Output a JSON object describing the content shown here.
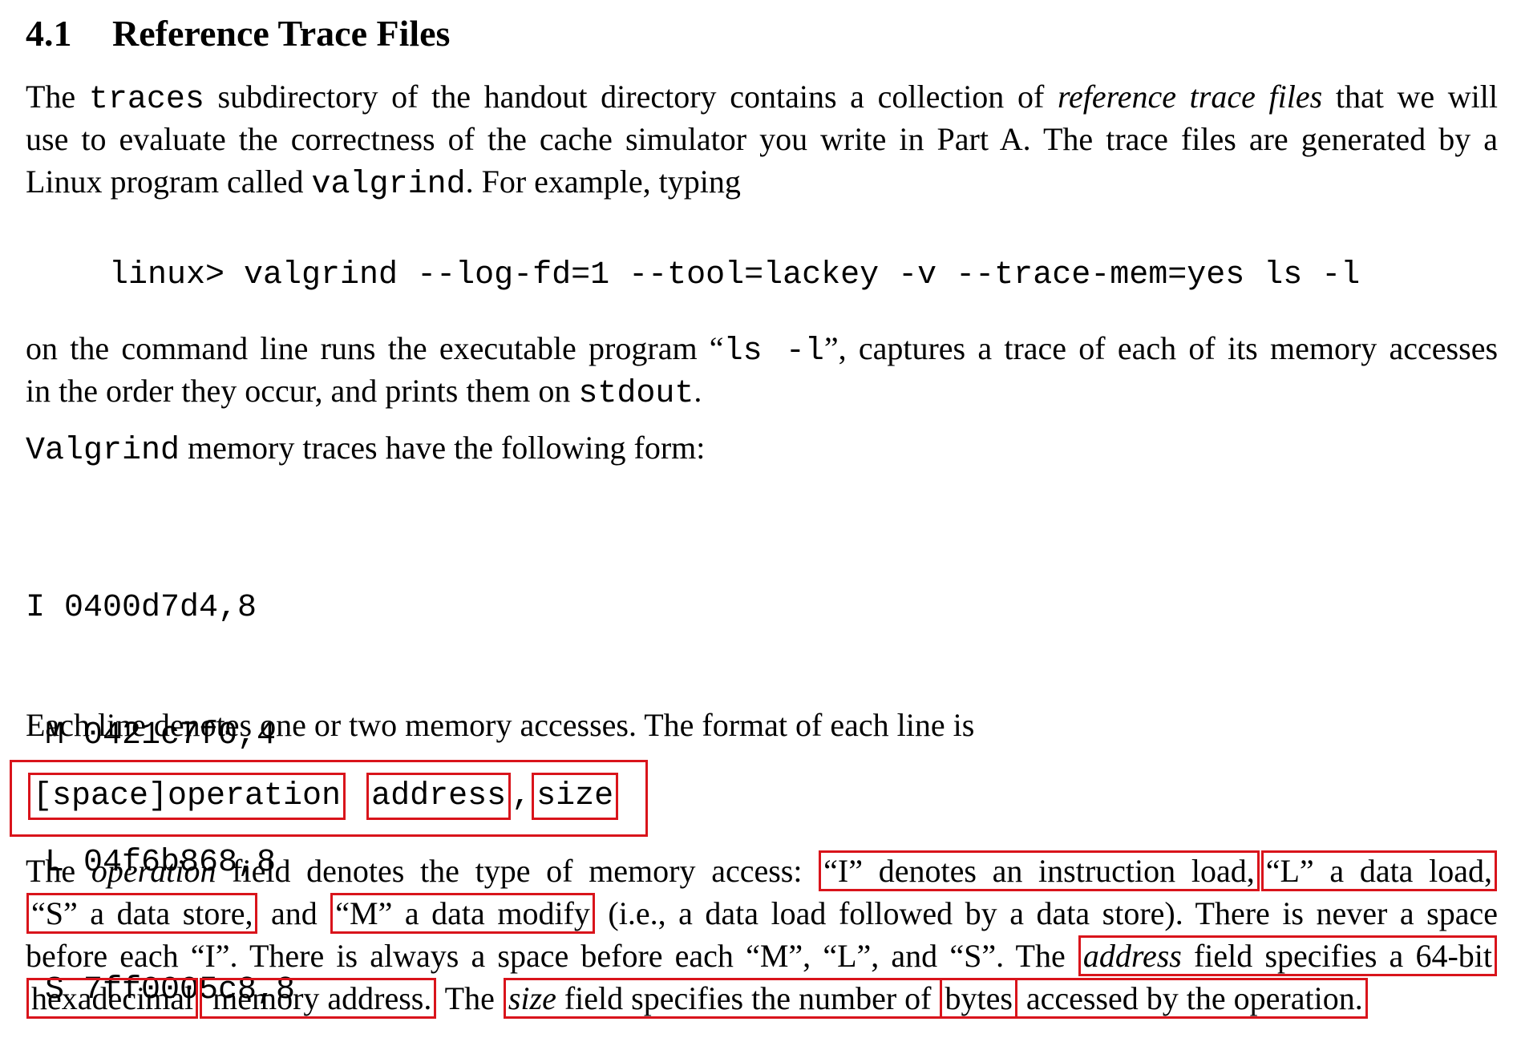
{
  "section": {
    "number": "4.1",
    "title": "Reference Trace Files"
  },
  "intro": {
    "l1": {
      "a": "The ",
      "code1": "traces",
      "b": " subdirectory of the handout directory contains a collection of ",
      "em": "reference trace files",
      "c": " that we will"
    },
    "l2": "use to evaluate the correctness of the cache simulator you write in Part A. The trace files are generated by a",
    "l3": {
      "a": "Linux program called ",
      "code": "valgrind",
      "b": ". For example, typing"
    }
  },
  "command": "linux> valgrind --log-fd=1 --tool=lackey -v --trace-mem=yes ls -l",
  "after_command": {
    "l1": {
      "a": "on the command line runs the executable program “",
      "code": "ls -l",
      "b": "”, captures a trace of each of its memory accesses"
    },
    "l2": {
      "a": "in the order they occur, and prints them on ",
      "code": "stdout",
      "b": "."
    }
  },
  "form_intro": {
    "code": "Valgrind",
    "text": " memory traces have the following form:"
  },
  "trace_lines": [
    "I 0400d7d4,8",
    " M 0421c7f0,4",
    " L 04f6b868,8",
    " S 7ff0005c8,8"
  ],
  "line_desc": "Each line denotes one or two memory accesses. The format of each line is",
  "format": {
    "operation": "[space]operation",
    "address": "address",
    "comma": ",",
    "size": "size"
  },
  "operation_para": {
    "l1": {
      "a": "The ",
      "em": "operation",
      "b": " field denotes the type of memory access: ",
      "box1": "“I” denotes an instruction load,",
      "box2": "“L” a data load,"
    },
    "l2": {
      "box1": "“S” a data store,",
      "a": " and ",
      "box2": "“M” a data modify",
      "b": " (i.e., a data load followed by a data store). There is never a space"
    },
    "l3": {
      "a": "before each “I”. There is always a space before each “M”, “L”, and “S”. The ",
      "box_em": "address",
      "box_rest": " field specifies a 64-bit"
    },
    "l4": {
      "box1": "hexadecimal",
      "box2": " memory address.",
      "a": " The ",
      "em": "size",
      "b": " field specifies the number of ",
      "box3": "bytes",
      "c": " accessed by the operation."
    }
  },
  "colors": {
    "annotation_box": "#d9141b",
    "text": "#000000",
    "background": "#ffffff"
  }
}
